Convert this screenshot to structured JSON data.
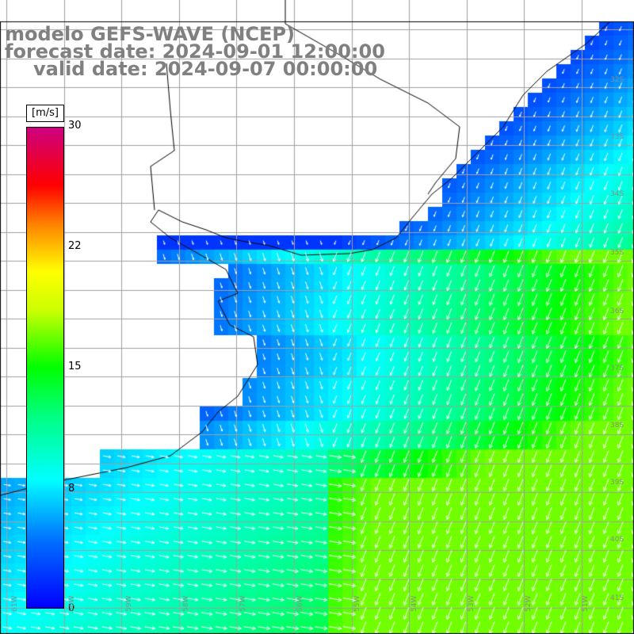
{
  "title": {
    "line1": "modelo GEFS-WAVE (NCEP)",
    "line2": "forecast date: 2024-09-01 12:00:00",
    "line3": "valid date: 2024-09-07 00:00:00"
  },
  "colorbar": {
    "units": "[m/s]",
    "min": 0,
    "max": 30,
    "ticks": [
      "30",
      "22",
      "15",
      "8",
      "0"
    ],
    "colors": [
      "#0000ff",
      "#0070ff",
      "#00ffff",
      "#00ff80",
      "#00ff00",
      "#ccff00",
      "#ffff00",
      "#ff8000",
      "#ff0000",
      "#cc0080"
    ]
  },
  "map": {
    "grid_color": "#a0a0a0",
    "coast_color": "#000000",
    "arrow_color": "#ffffff",
    "lat_labels": [
      "32S",
      "33S",
      "34S",
      "35S",
      "36S",
      "37S",
      "38S",
      "39S",
      "40S",
      "41S"
    ],
    "lon_labels": [
      "61W",
      "60W",
      "59W",
      "58W",
      "57W",
      "56W",
      "55W",
      "54W",
      "53W",
      "52W",
      "51W"
    ]
  }
}
